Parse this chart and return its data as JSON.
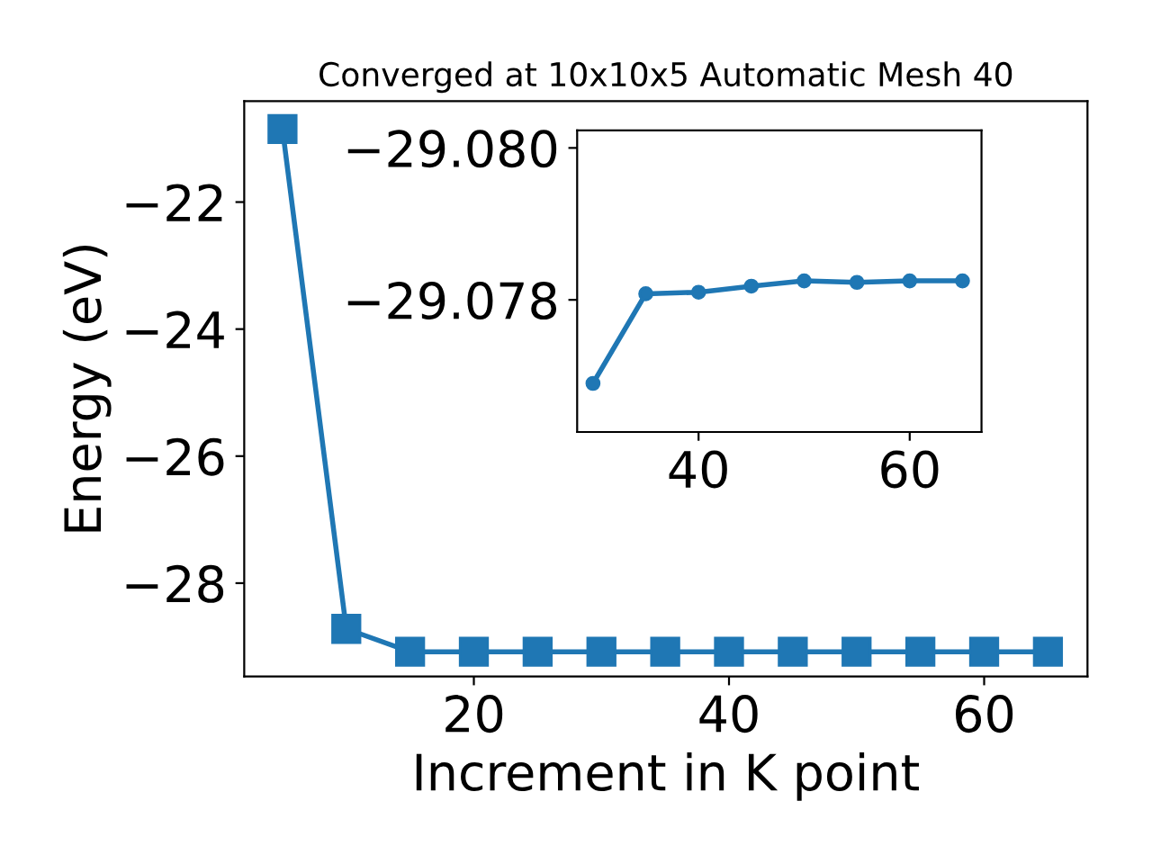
{
  "chart_data": [
    {
      "type": "line",
      "title": "Converged at 10x10x5 Automatic Mesh 40",
      "xlabel": "Increment in K point",
      "ylabel": "Energy (eV)",
      "x": [
        5,
        10,
        15,
        20,
        25,
        30,
        35,
        40,
        45,
        50,
        55,
        60,
        65
      ],
      "series": [
        {
          "color": "#1f77b4",
          "values": [
            -20.85,
            -28.72,
            -29.08,
            -29.08,
            -29.08,
            -29.08,
            -29.08,
            -29.08,
            -29.08,
            -29.08,
            -29.08,
            -29.08,
            -29.08
          ]
        }
      ],
      "marker": "square",
      "line_style": "solid",
      "grid": false,
      "xlim": [
        2.0,
        68.1
      ],
      "ylim": [
        -29.47,
        -20.41
      ],
      "xticks": [
        20,
        40,
        60
      ],
      "yticks": [
        {
          "value": -28,
          "label": "−28"
        },
        {
          "value": -26,
          "label": "−26"
        },
        {
          "value": -24,
          "label": "−24"
        },
        {
          "value": -22,
          "label": "−22"
        }
      ]
    },
    {
      "type": "line",
      "x": [
        30,
        35,
        40,
        45,
        50,
        55,
        60,
        65
      ],
      "series": [
        {
          "color": "#1f77b4",
          "values": [
            -29.0769,
            -29.07808,
            -29.0781,
            -29.07818,
            -29.07825,
            -29.07823,
            -29.07825,
            -29.07825
          ]
        }
      ],
      "marker": "circle",
      "line_style": "solid",
      "grid": false,
      "xlim": [
        28.5,
        66.8
      ],
      "ylim": [
        -29.07626,
        -29.08023
      ],
      "xticks": [
        40,
        60
      ],
      "yticks": [
        {
          "value": -29.078,
          "label": "−29.078"
        },
        {
          "value": -29.08,
          "label": "−29.080"
        }
      ]
    }
  ]
}
